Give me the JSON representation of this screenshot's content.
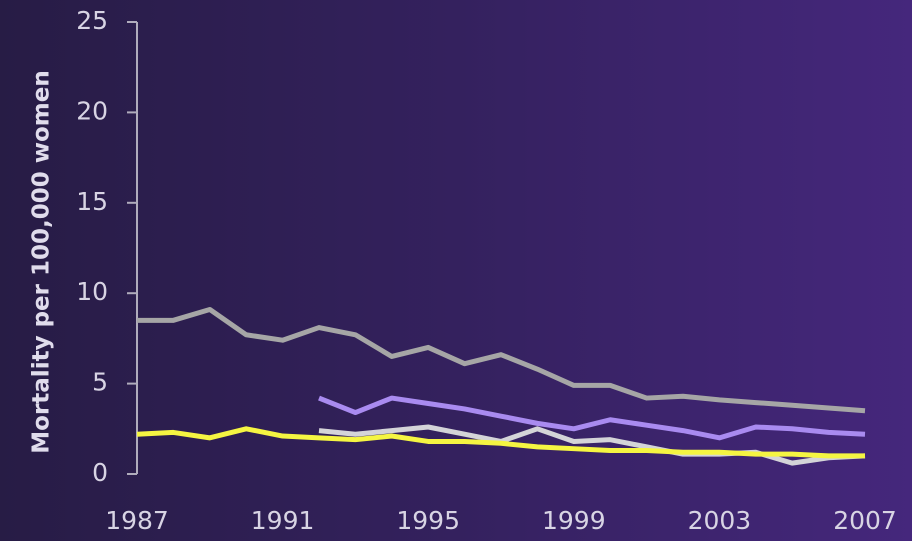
{
  "chart_data": {
    "type": "line",
    "ylabel": "Mortality per 100,000 women",
    "x": [
      1987,
      1988,
      1989,
      1990,
      1991,
      1992,
      1993,
      1994,
      1995,
      1996,
      1997,
      1998,
      1999,
      2000,
      2001,
      2002,
      2003,
      2004,
      2005,
      2006,
      2007
    ],
    "series": [
      {
        "color": "#a6a6a6",
        "values": [
          8.5,
          8.5,
          9.1,
          7.7,
          7.4,
          8.1,
          7.7,
          6.5,
          7.0,
          6.1,
          6.6,
          5.8,
          4.9,
          4.9,
          4.2,
          4.3,
          4.1,
          3.95,
          3.8,
          3.65,
          3.5
        ]
      },
      {
        "color": "#a98bf0",
        "values": [
          null,
          null,
          null,
          null,
          null,
          4.2,
          3.4,
          4.2,
          3.9,
          3.6,
          3.2,
          2.8,
          2.5,
          3.0,
          2.7,
          2.4,
          2.0,
          2.6,
          2.5,
          2.3,
          2.2
        ]
      },
      {
        "color": "#d4d4d8",
        "values": [
          null,
          null,
          null,
          null,
          null,
          2.4,
          2.2,
          2.4,
          2.6,
          2.2,
          1.8,
          2.5,
          1.8,
          1.9,
          1.5,
          1.1,
          1.1,
          1.2,
          0.6,
          0.9,
          1.0
        ]
      },
      {
        "color": "#f5f542",
        "values": [
          2.2,
          2.3,
          2.0,
          2.5,
          2.1,
          2.0,
          1.9,
          2.1,
          1.8,
          1.8,
          1.7,
          1.5,
          1.4,
          1.3,
          1.3,
          1.2,
          1.2,
          1.1,
          1.1,
          1.0,
          1.0
        ]
      }
    ],
    "xlim": [
      1987,
      2007
    ],
    "xticks": [
      1987,
      1991,
      1995,
      1999,
      2003,
      2007
    ],
    "ylim": [
      0,
      25
    ],
    "yticks": [
      0,
      5,
      10,
      15,
      20,
      25
    ]
  }
}
